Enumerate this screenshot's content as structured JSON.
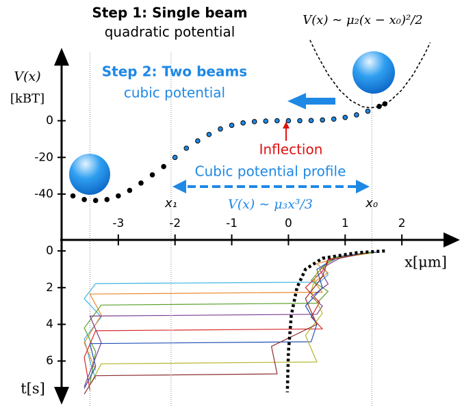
{
  "chart_data": [
    {
      "type": "scatter",
      "step1_title": "Step 1: Single beam",
      "step1_subtitle": "quadratic potential",
      "quadratic_formula": "V(x) ∼ μ₂(x − x₀)²/2",
      "ylabel": "V(x)",
      "yunit": "[kBT]",
      "step2_title": "Step 2: Two beams",
      "step2_subtitle": "cubic potential",
      "inflection_label": "Inflection",
      "profile_label": "Cubic potential profile",
      "cubic_formula": "V(x) ∼ μ₃x³/3",
      "xlabel": "x[μm]",
      "xlim": [
        -4,
        3
      ],
      "xticks": [
        -3,
        -2,
        -1,
        0,
        1,
        2
      ],
      "ylim": [
        -65,
        39
      ],
      "yticks": [
        -40,
        -20,
        0
      ],
      "reference_lines": [
        {
          "label": "x₁",
          "x": -2.07
        },
        {
          "label": "x₀",
          "x": 1.47
        },
        {
          "x": -3.5
        }
      ],
      "series": [
        {
          "color": "#000000",
          "highlight_color": "#1e88e5",
          "x": [
            -3.8,
            -3.6,
            -3.4,
            -3.2,
            -3.0,
            -2.8,
            -2.6,
            -2.4,
            -2.2,
            -2.0,
            -1.8,
            -1.6,
            -1.4,
            -1.2,
            -1.0,
            -0.8,
            -0.6,
            -0.4,
            -0.2,
            0,
            0.2,
            0.4,
            0.6,
            0.8,
            1.0,
            1.2,
            1.4,
            1.6,
            1.7
          ],
          "values": [
            -41,
            -43,
            -43.5,
            -43,
            -41,
            -38,
            -34,
            -29.5,
            -25,
            -20,
            -15,
            -11,
            -7.5,
            -4.5,
            -2.5,
            -1.2,
            -0.5,
            -0.2,
            0,
            0,
            0,
            0.1,
            0.4,
            0.9,
            1.8,
            3.2,
            5.2,
            7.8,
            9.2
          ]
        },
        {
          "color": "#000000",
          "dashed": true,
          "x": [
            0.38,
            0.5,
            0.7,
            0.9,
            1.1,
            1.3,
            1.45,
            1.6,
            1.8,
            2.0,
            2.2,
            2.4,
            2.5
          ],
          "values": [
            44,
            36.2,
            25.2,
            16.8,
            11.0,
            7.7,
            7,
            7.7,
            11.0,
            16.8,
            25.2,
            36.2,
            42.6
          ]
        }
      ]
    },
    {
      "type": "line",
      "ylabel": "t[s]",
      "ylim": [
        -0.6,
        8.3
      ],
      "yticks": [
        0,
        2,
        4,
        6
      ],
      "series": [
        {
          "color": "#3bb4e0",
          "x": [
            1.5,
            0.9,
            0.6,
            0.7,
            0.55,
            -3.4,
            -3.6,
            -3.3,
            -3.6,
            -3.5,
            -3.4
          ],
          "values": [
            0.05,
            0.3,
            0.8,
            1.3,
            1.7,
            1.78,
            2.6,
            3.6,
            4.8,
            6.0,
            7.0
          ]
        },
        {
          "color": "#e8892a",
          "x": [
            1.6,
            1.0,
            0.5,
            0.7,
            0.45,
            0.6,
            -3.5,
            -3.3,
            -3.6,
            -3.4
          ],
          "values": [
            0.05,
            0.25,
            0.7,
            1.2,
            1.7,
            2.25,
            2.35,
            3.5,
            5.0,
            6.5
          ]
        },
        {
          "color": "#5aa02c",
          "x": [
            1.5,
            0.8,
            0.6,
            0.4,
            0.7,
            0.5,
            -3.3,
            -3.6,
            -3.4,
            -3.5
          ],
          "values": [
            0.05,
            0.35,
            0.9,
            1.6,
            2.2,
            2.85,
            2.95,
            4.2,
            5.5,
            7.2
          ]
        },
        {
          "color": "#7a3b8f",
          "x": [
            1.4,
            0.9,
            0.55,
            0.7,
            0.4,
            0.6,
            0.5,
            -3.5,
            -3.3,
            -3.6
          ],
          "values": [
            0.1,
            0.4,
            1.0,
            1.8,
            2.5,
            3.0,
            3.45,
            3.55,
            5.0,
            7.4
          ]
        },
        {
          "color": "#d62728",
          "x": [
            1.5,
            0.7,
            0.6,
            0.3,
            0.55,
            0.4,
            0.6,
            -3.4,
            -3.6,
            -3.5
          ],
          "values": [
            0.1,
            0.45,
            1.1,
            2.0,
            2.8,
            3.6,
            4.25,
            4.35,
            5.8,
            7.6
          ]
        },
        {
          "color": "#1f4fb4",
          "x": [
            1.6,
            0.9,
            0.5,
            0.6,
            0.3,
            0.5,
            0.4,
            -3.5,
            -3.4,
            -3.6
          ],
          "values": [
            0.05,
            0.3,
            1.0,
            2.0,
            3.0,
            4.0,
            4.95,
            5.05,
            6.3,
            7.5
          ]
        },
        {
          "color": "#b5b52a",
          "x": [
            1.5,
            0.8,
            0.5,
            0.4,
            0.6,
            0.3,
            0.5,
            -3.3,
            -3.5
          ],
          "values": [
            0.1,
            0.4,
            1.2,
            2.2,
            3.4,
            4.6,
            6.05,
            6.15,
            7.3
          ]
        },
        {
          "color": "#8c2d2d",
          "x": [
            1.4,
            0.7,
            0.6,
            0.3,
            0.5,
            -0.3,
            -0.2,
            -3.4,
            -3.6
          ],
          "values": [
            0.1,
            0.5,
            1.4,
            2.6,
            4.0,
            5.2,
            6.7,
            6.8,
            7.8
          ]
        },
        {
          "color": "#000000",
          "dotted": true,
          "x": [
            1.7,
            1.2,
            0.6,
            0.3,
            0.15,
            0.05,
            0.0,
            -0.02
          ],
          "values": [
            0,
            0.1,
            0.4,
            1.0,
            2.0,
            3.5,
            5.5,
            7.7
          ]
        }
      ]
    }
  ]
}
